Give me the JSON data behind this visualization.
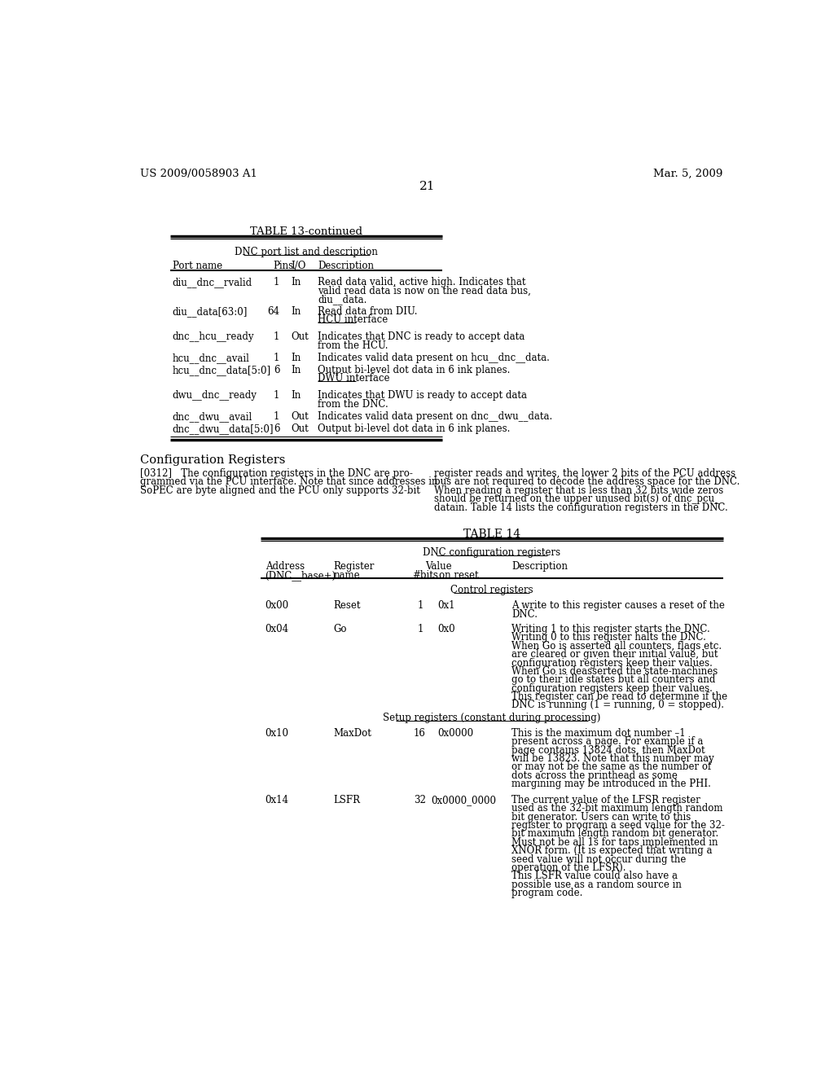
{
  "page_header_left": "US 2009/0058903 A1",
  "page_header_right": "Mar. 5, 2009",
  "page_number": "21",
  "table13_title": "TABLE 13-continued",
  "table13_subtitle": "DNC port list and description",
  "config_heading": "Configuration Registers",
  "config_para_left_lines": [
    "[0312]   The configuration registers in the DNC are pro-",
    "grammed via the PCU interface. Note that since addresses in",
    "SoPEC are byte aligned and the PCU only supports 32-bit"
  ],
  "config_para_right_lines": [
    "register reads and writes, the lower 2 bits of the PCU address",
    "bus are not required to decode the address space for the DNC.",
    "When reading a register that is less than 32 bits wide zeros",
    "should be returned on the upper unused bit(s) of dnc_pcu_",
    "datain. Table 14 lists the configuration registers in the DNC."
  ],
  "table14_title": "TABLE 14",
  "table14_subtitle": "DNC configuration registers",
  "go_desc_lines": [
    "Writing 1 to this register starts the DNC.",
    "Writing 0 to this register halts the DNC.",
    "When Go is asserted all counters, flags etc.",
    "are cleared or given their initial value, but",
    "configuration registers keep their values.",
    "When Go is deasserted the state-machines",
    "go to their idle states but all counters and",
    "configuration registers keep their values.",
    "This register can be read to determine if the",
    "DNC is running (1 = running, 0 = stopped)."
  ],
  "maxdot_desc_lines": [
    "This is the maximum dot number –1",
    "present across a page. For example if a",
    "page contains 13824 dots, then MaxDot",
    "will be 13823. Note that this number may",
    "or may not be the same as the number of",
    "dots across the printhead as some",
    "margining may be introduced in the PHI."
  ],
  "lsfr_desc_lines": [
    "The current value of the LFSR register",
    "used as the 32-bit maximum length random",
    "bit generator. Users can write to this",
    "register to program a seed value for the 32-",
    "bit maximum length random bit generator.",
    "Must not be all 1s for taps implemented in",
    "XNOR form. (It is expected that writing a",
    "seed value will not occur during the",
    "operation of the LFSR).",
    "This LSFR value could also have a",
    "possible use as a random source in",
    "program code."
  ]
}
